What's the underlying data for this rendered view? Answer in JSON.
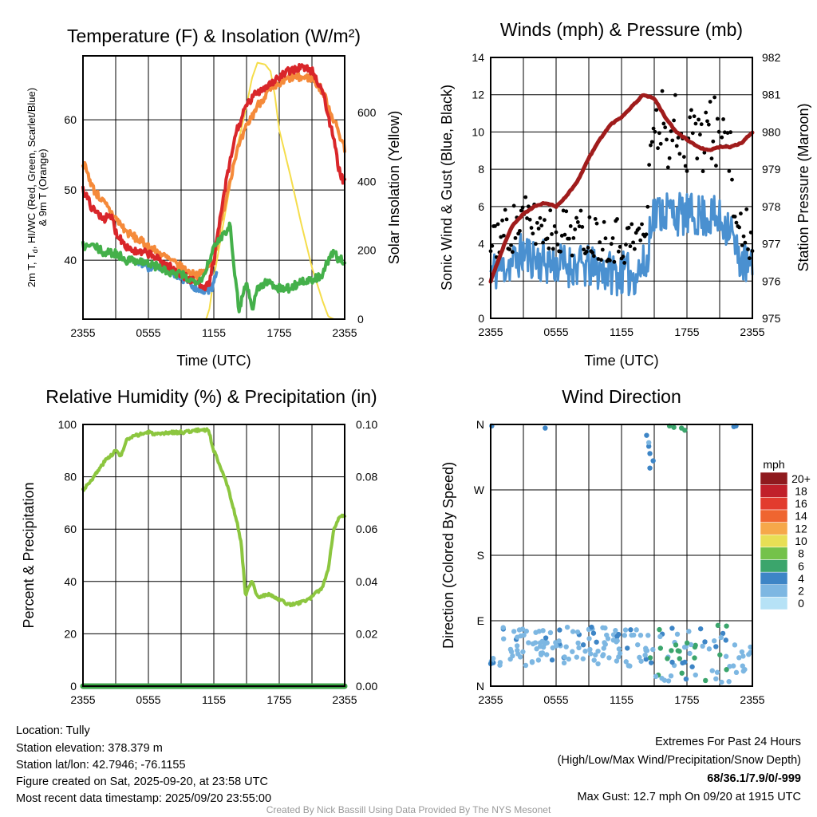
{
  "chart_data": [
    {
      "type": "line",
      "title": "Temperature (F) & Insolation (W/m²)",
      "xlabel": "Time (UTC)",
      "ylabel_parts": [
        "2m T, T",
        "d",
        ", HI/WC (Red, Green, Scarlet/Blue)",
        "& 9m T (Orange)"
      ],
      "y2label": "Solar Insolation (Yellow)",
      "x_ticks": [
        "2355",
        "0555",
        "1155",
        "1755",
        "2355"
      ],
      "x_range_hours": [
        0,
        24
      ],
      "ylim": [
        31.6,
        69.1
      ],
      "y_ticks": [
        40,
        50,
        60
      ],
      "y2lim": [
        0,
        765
      ],
      "y2_ticks": [
        0,
        200,
        400,
        600
      ],
      "series": [
        {
          "name": "Solar Insolation",
          "color": "#f5dd4b",
          "axis": "right",
          "points": [
            [
              0,
              0
            ],
            [
              11.3,
              0
            ],
            [
              11.6,
              30
            ],
            [
              12,
              120
            ],
            [
              13,
              300
            ],
            [
              14,
              480
            ],
            [
              15,
              620
            ],
            [
              15.5,
              700
            ],
            [
              16,
              745
            ],
            [
              16.7,
              740
            ],
            [
              17.2,
              720
            ],
            [
              17.6,
              650
            ],
            [
              18,
              550
            ],
            [
              19,
              420
            ],
            [
              20,
              280
            ],
            [
              21,
              150
            ],
            [
              22,
              50
            ],
            [
              22.5,
              8
            ],
            [
              23,
              0
            ],
            [
              24,
              0
            ]
          ]
        },
        {
          "name": "9m T",
          "color": "#f58a3a",
          "axis": "left",
          "points": [
            [
              0,
              54
            ],
            [
              1,
              50
            ],
            [
              2,
              48
            ],
            [
              3,
              46
            ],
            [
              4,
              44
            ],
            [
              5,
              43
            ],
            [
              6,
              42
            ],
            [
              7,
              41
            ],
            [
              8,
              40
            ],
            [
              9,
              39
            ],
            [
              10,
              38
            ],
            [
              11,
              38
            ],
            [
              12,
              40
            ],
            [
              13,
              48
            ],
            [
              14,
              55
            ],
            [
              15,
              59
            ],
            [
              16,
              62
            ],
            [
              17,
              64
            ],
            [
              18,
              65
            ],
            [
              19,
              66
            ],
            [
              20,
              66
            ],
            [
              21,
              66
            ],
            [
              22,
              64
            ],
            [
              23,
              60
            ],
            [
              24,
              56
            ]
          ]
        },
        {
          "name": "HI/WC",
          "color": "#4a90d0",
          "axis": "left",
          "points": [
            [
              5,
              40
            ],
            [
              6,
              39
            ],
            [
              7,
              39
            ],
            [
              8,
              38.5
            ],
            [
              9,
              37.5
            ],
            [
              10,
              36.5
            ],
            [
              11,
              35.5
            ],
            [
              11.8,
              36
            ],
            [
              12.3,
              39
            ]
          ]
        },
        {
          "name": "2m T",
          "color": "#d9262a",
          "axis": "left",
          "points": [
            [
              0,
              50
            ],
            [
              1,
              47
            ],
            [
              2,
              46
            ],
            [
              2.7,
              46
            ],
            [
              3,
              44
            ],
            [
              4,
              42
            ],
            [
              5,
              41
            ],
            [
              6,
              41
            ],
            [
              7,
              40
            ],
            [
              8,
              39
            ],
            [
              9,
              38
            ],
            [
              10,
              37
            ],
            [
              11,
              36.5
            ],
            [
              11.5,
              36.2
            ],
            [
              12,
              40
            ],
            [
              13,
              50
            ],
            [
              14,
              58
            ],
            [
              15,
              62
            ],
            [
              16,
              64
            ],
            [
              17,
              65
            ],
            [
              18,
              66
            ],
            [
              19,
              67
            ],
            [
              20,
              67.5
            ],
            [
              21,
              67
            ],
            [
              22,
              64
            ],
            [
              23,
              57
            ],
            [
              23.6,
              52
            ],
            [
              24,
              51
            ]
          ]
        },
        {
          "name": "2m Td",
          "color": "#44b04a",
          "axis": "left",
          "points": [
            [
              0,
              42
            ],
            [
              1,
              42
            ],
            [
              2,
              41
            ],
            [
              3,
              41
            ],
            [
              4,
              40
            ],
            [
              5,
              40
            ],
            [
              6,
              39.5
            ],
            [
              7,
              39
            ],
            [
              8,
              38
            ],
            [
              9,
              38
            ],
            [
              10,
              37
            ],
            [
              11,
              37.5
            ],
            [
              11.8,
              41
            ],
            [
              12.5,
              43
            ],
            [
              13,
              44
            ],
            [
              13.5,
              45
            ],
            [
              14,
              37
            ],
            [
              14.3,
              33
            ],
            [
              15,
              37
            ],
            [
              15.5,
              33
            ],
            [
              16,
              36
            ],
            [
              17,
              37
            ],
            [
              18,
              36
            ],
            [
              19,
              36
            ],
            [
              20,
              37
            ],
            [
              21,
              37
            ],
            [
              22,
              38
            ],
            [
              22.5,
              40
            ],
            [
              23,
              41
            ],
            [
              23.5,
              40
            ],
            [
              24,
              40
            ]
          ]
        }
      ]
    },
    {
      "type": "line",
      "title": "Winds (mph) & Pressure (mb)",
      "xlabel": "Time (UTC)",
      "ylabel": "Sonic Wind & Gust (Blue, Black)",
      "y2label": "Station Pressure (Maroon)",
      "x_ticks": [
        "2355",
        "0555",
        "1155",
        "1755",
        "2355"
      ],
      "ylim": [
        0,
        14
      ],
      "y_ticks": [
        "0",
        "2",
        "4",
        "6",
        "8",
        "10",
        "12",
        "14"
      ],
      "y2lim": [
        975,
        982
      ],
      "y2_ticks": [
        "975",
        "976",
        "977",
        "978",
        "979",
        "980",
        "981",
        "982"
      ],
      "wind_color": "#4a90d0",
      "gust_color": "#000000",
      "pressure_color": "#a01c1c",
      "wind_mean": [
        [
          0,
          2.5
        ],
        [
          2,
          3
        ],
        [
          3,
          3.5
        ],
        [
          5,
          3
        ],
        [
          8,
          2.8
        ],
        [
          11,
          2.5
        ],
        [
          13,
          2.3
        ],
        [
          14.5,
          3
        ],
        [
          14.6,
          5.5
        ],
        [
          16,
          5.8
        ],
        [
          18,
          5.5
        ],
        [
          20,
          5.5
        ],
        [
          22,
          5
        ],
        [
          22.5,
          3.5
        ],
        [
          24,
          2.5
        ]
      ],
      "wind_noise": 1.0,
      "gust_offset": 1.3,
      "pressure": [
        [
          0,
          976.0
        ],
        [
          1,
          976.8
        ],
        [
          2,
          977.5
        ],
        [
          3,
          977.8
        ],
        [
          4,
          978.0
        ],
        [
          5,
          978.1
        ],
        [
          6,
          978.0
        ],
        [
          7,
          978.3
        ],
        [
          8,
          978.7
        ],
        [
          9,
          979.3
        ],
        [
          10,
          979.8
        ],
        [
          11,
          980.2
        ],
        [
          12,
          980.4
        ],
        [
          13,
          980.7
        ],
        [
          14,
          981.0
        ],
        [
          15,
          980.9
        ],
        [
          16,
          980.4
        ],
        [
          17,
          980.0
        ],
        [
          18,
          979.8
        ],
        [
          19,
          979.6
        ],
        [
          20,
          979.5
        ],
        [
          21,
          979.6
        ],
        [
          22,
          979.6
        ],
        [
          23,
          979.7
        ],
        [
          24,
          980.0
        ]
      ]
    },
    {
      "type": "line",
      "title": "Relative Humidity (%) & Precipitation (in)",
      "ylabel": "Percent & Precipitation",
      "x_ticks": [
        "2355",
        "0555",
        "1155",
        "1755",
        "2355"
      ],
      "ylim": [
        0,
        100
      ],
      "y_ticks": [
        "0",
        "20",
        "40",
        "60",
        "80",
        "100"
      ],
      "y2lim": [
        0,
        0.1
      ],
      "y2_ticks": [
        "0.00",
        "0.02",
        "0.04",
        "0.06",
        "0.08",
        "0.10"
      ],
      "rh_color": "#8cc63f",
      "precip_color": "#3aa244",
      "rh": [
        [
          0,
          75
        ],
        [
          1,
          80
        ],
        [
          2,
          86
        ],
        [
          3,
          90
        ],
        [
          3.5,
          88
        ],
        [
          4,
          94
        ],
        [
          5,
          96
        ],
        [
          6,
          97
        ],
        [
          7,
          96
        ],
        [
          8,
          97
        ],
        [
          9,
          97
        ],
        [
          10,
          97.5
        ],
        [
          11,
          98
        ],
        [
          11.5,
          98
        ],
        [
          12,
          90
        ],
        [
          13,
          80
        ],
        [
          14,
          65
        ],
        [
          14.5,
          55
        ],
        [
          14.9,
          35
        ],
        [
          15.5,
          40
        ],
        [
          16,
          34
        ],
        [
          17,
          35
        ],
        [
          18,
          33
        ],
        [
          19,
          31
        ],
        [
          20,
          32
        ],
        [
          21,
          34
        ],
        [
          22,
          38
        ],
        [
          22.5,
          45
        ],
        [
          23,
          60
        ],
        [
          23.5,
          65
        ],
        [
          24,
          65
        ]
      ],
      "precip": [
        [
          0,
          0
        ],
        [
          24,
          0
        ]
      ]
    },
    {
      "type": "scatter",
      "title": "Wind Direction",
      "ylabel": "Direction (Colored By Speed)",
      "x_ticks": [
        "2355",
        "0555",
        "1155",
        "1755",
        "2355"
      ],
      "ylim": [
        0,
        360
      ],
      "y_ticks": [
        "N",
        "E",
        "S",
        "W",
        "N"
      ],
      "colorbar": {
        "title": "mph",
        "labels": [
          "0",
          "2",
          "4",
          "6",
          "8",
          "10",
          "12",
          "14",
          "16",
          "18",
          "20+"
        ],
        "colors": [
          "#b6e2f6",
          "#7db7e2",
          "#3d85c6",
          "#3ba56c",
          "#74c24a",
          "#e8df55",
          "#f6a84a",
          "#ef6530",
          "#e23b2e",
          "#c1202a",
          "#8f1a1e"
        ]
      },
      "outliers": [
        [
          0.1,
          358,
          3
        ],
        [
          5,
          355,
          3
        ],
        [
          14.3,
          345,
          3
        ],
        [
          14.5,
          330,
          3
        ],
        [
          14.6,
          320,
          3
        ],
        [
          14.5,
          335,
          2
        ],
        [
          14.6,
          300,
          3
        ],
        [
          14.9,
          310,
          3
        ],
        [
          16.4,
          358,
          5
        ],
        [
          16.8,
          356,
          6
        ],
        [
          17.5,
          355,
          5
        ],
        [
          17.8,
          352,
          6
        ],
        [
          22.3,
          357,
          4
        ],
        [
          22.5,
          358,
          4
        ]
      ]
    }
  ],
  "footer": {
    "left": [
      "Location: Tully",
      "Station elevation: 378.379 m",
      "Station lat/lon: 42.7946; -76.1155",
      "Figure created on Sat, 2025-09-20, at 23:58 UTC",
      "Most recent data timestamp: 2025/09/20 23:55:00"
    ],
    "extremes_title": "Extremes For Past 24 Hours",
    "extremes_legend": "(High/Low/Max Wind/Precipitation/Snow Depth)",
    "extremes_values": "68/36.1/7.9/0/-999",
    "max_gust": "Max Gust: 12.7 mph On 09/20 at 1915 UTC",
    "credit": "Created By Nick Bassill Using Data Provided By The NYS Mesonet",
    "extremes_color": "#c8202a"
  }
}
